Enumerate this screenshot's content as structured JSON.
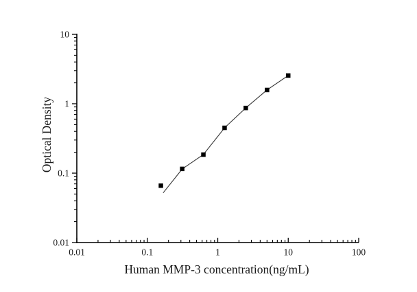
{
  "figure": {
    "background": "#ffffff",
    "description": "ELISA standard curve, log-log scatter plot with fit line"
  },
  "chart_data": {
    "type": "scatter",
    "title": "",
    "xlabel": "Human MMP-3 concentration(ng/mL)",
    "ylabel": "Optical Density",
    "xscale": "log",
    "yscale": "log",
    "xlim": [
      0.01,
      100
    ],
    "ylim": [
      0.01,
      10
    ],
    "grid": false,
    "legend": "none",
    "marker": "square",
    "series": [
      {
        "name": "standard-curve-points",
        "x": [
          0.156,
          0.313,
          0.625,
          1.25,
          2.5,
          5,
          10
        ],
        "y": [
          0.066,
          0.115,
          0.185,
          0.45,
          0.87,
          1.58,
          2.55
        ]
      }
    ],
    "fit_line": {
      "points": [
        [
          0.168,
          0.052
        ],
        [
          0.313,
          0.115
        ],
        [
          0.625,
          0.185
        ],
        [
          1.25,
          0.45
        ],
        [
          2.5,
          0.87
        ],
        [
          5,
          1.58
        ],
        [
          10,
          2.55
        ]
      ]
    },
    "x_ticks": [
      {
        "value": 0.01,
        "label": "0.01"
      },
      {
        "value": 0.1,
        "label": "0.1"
      },
      {
        "value": 1,
        "label": "1"
      },
      {
        "value": 10,
        "label": "10"
      },
      {
        "value": 100,
        "label": "100"
      }
    ],
    "y_ticks": [
      {
        "value": 0.01,
        "label": "0.01"
      },
      {
        "value": 0.1,
        "label": "0.1"
      },
      {
        "value": 1,
        "label": "1"
      },
      {
        "value": 10,
        "label": "10"
      }
    ],
    "colors": {
      "marker": "#000000",
      "line": "#3c3c3c",
      "axis": "#000000",
      "text": "#1a1a1a"
    }
  }
}
